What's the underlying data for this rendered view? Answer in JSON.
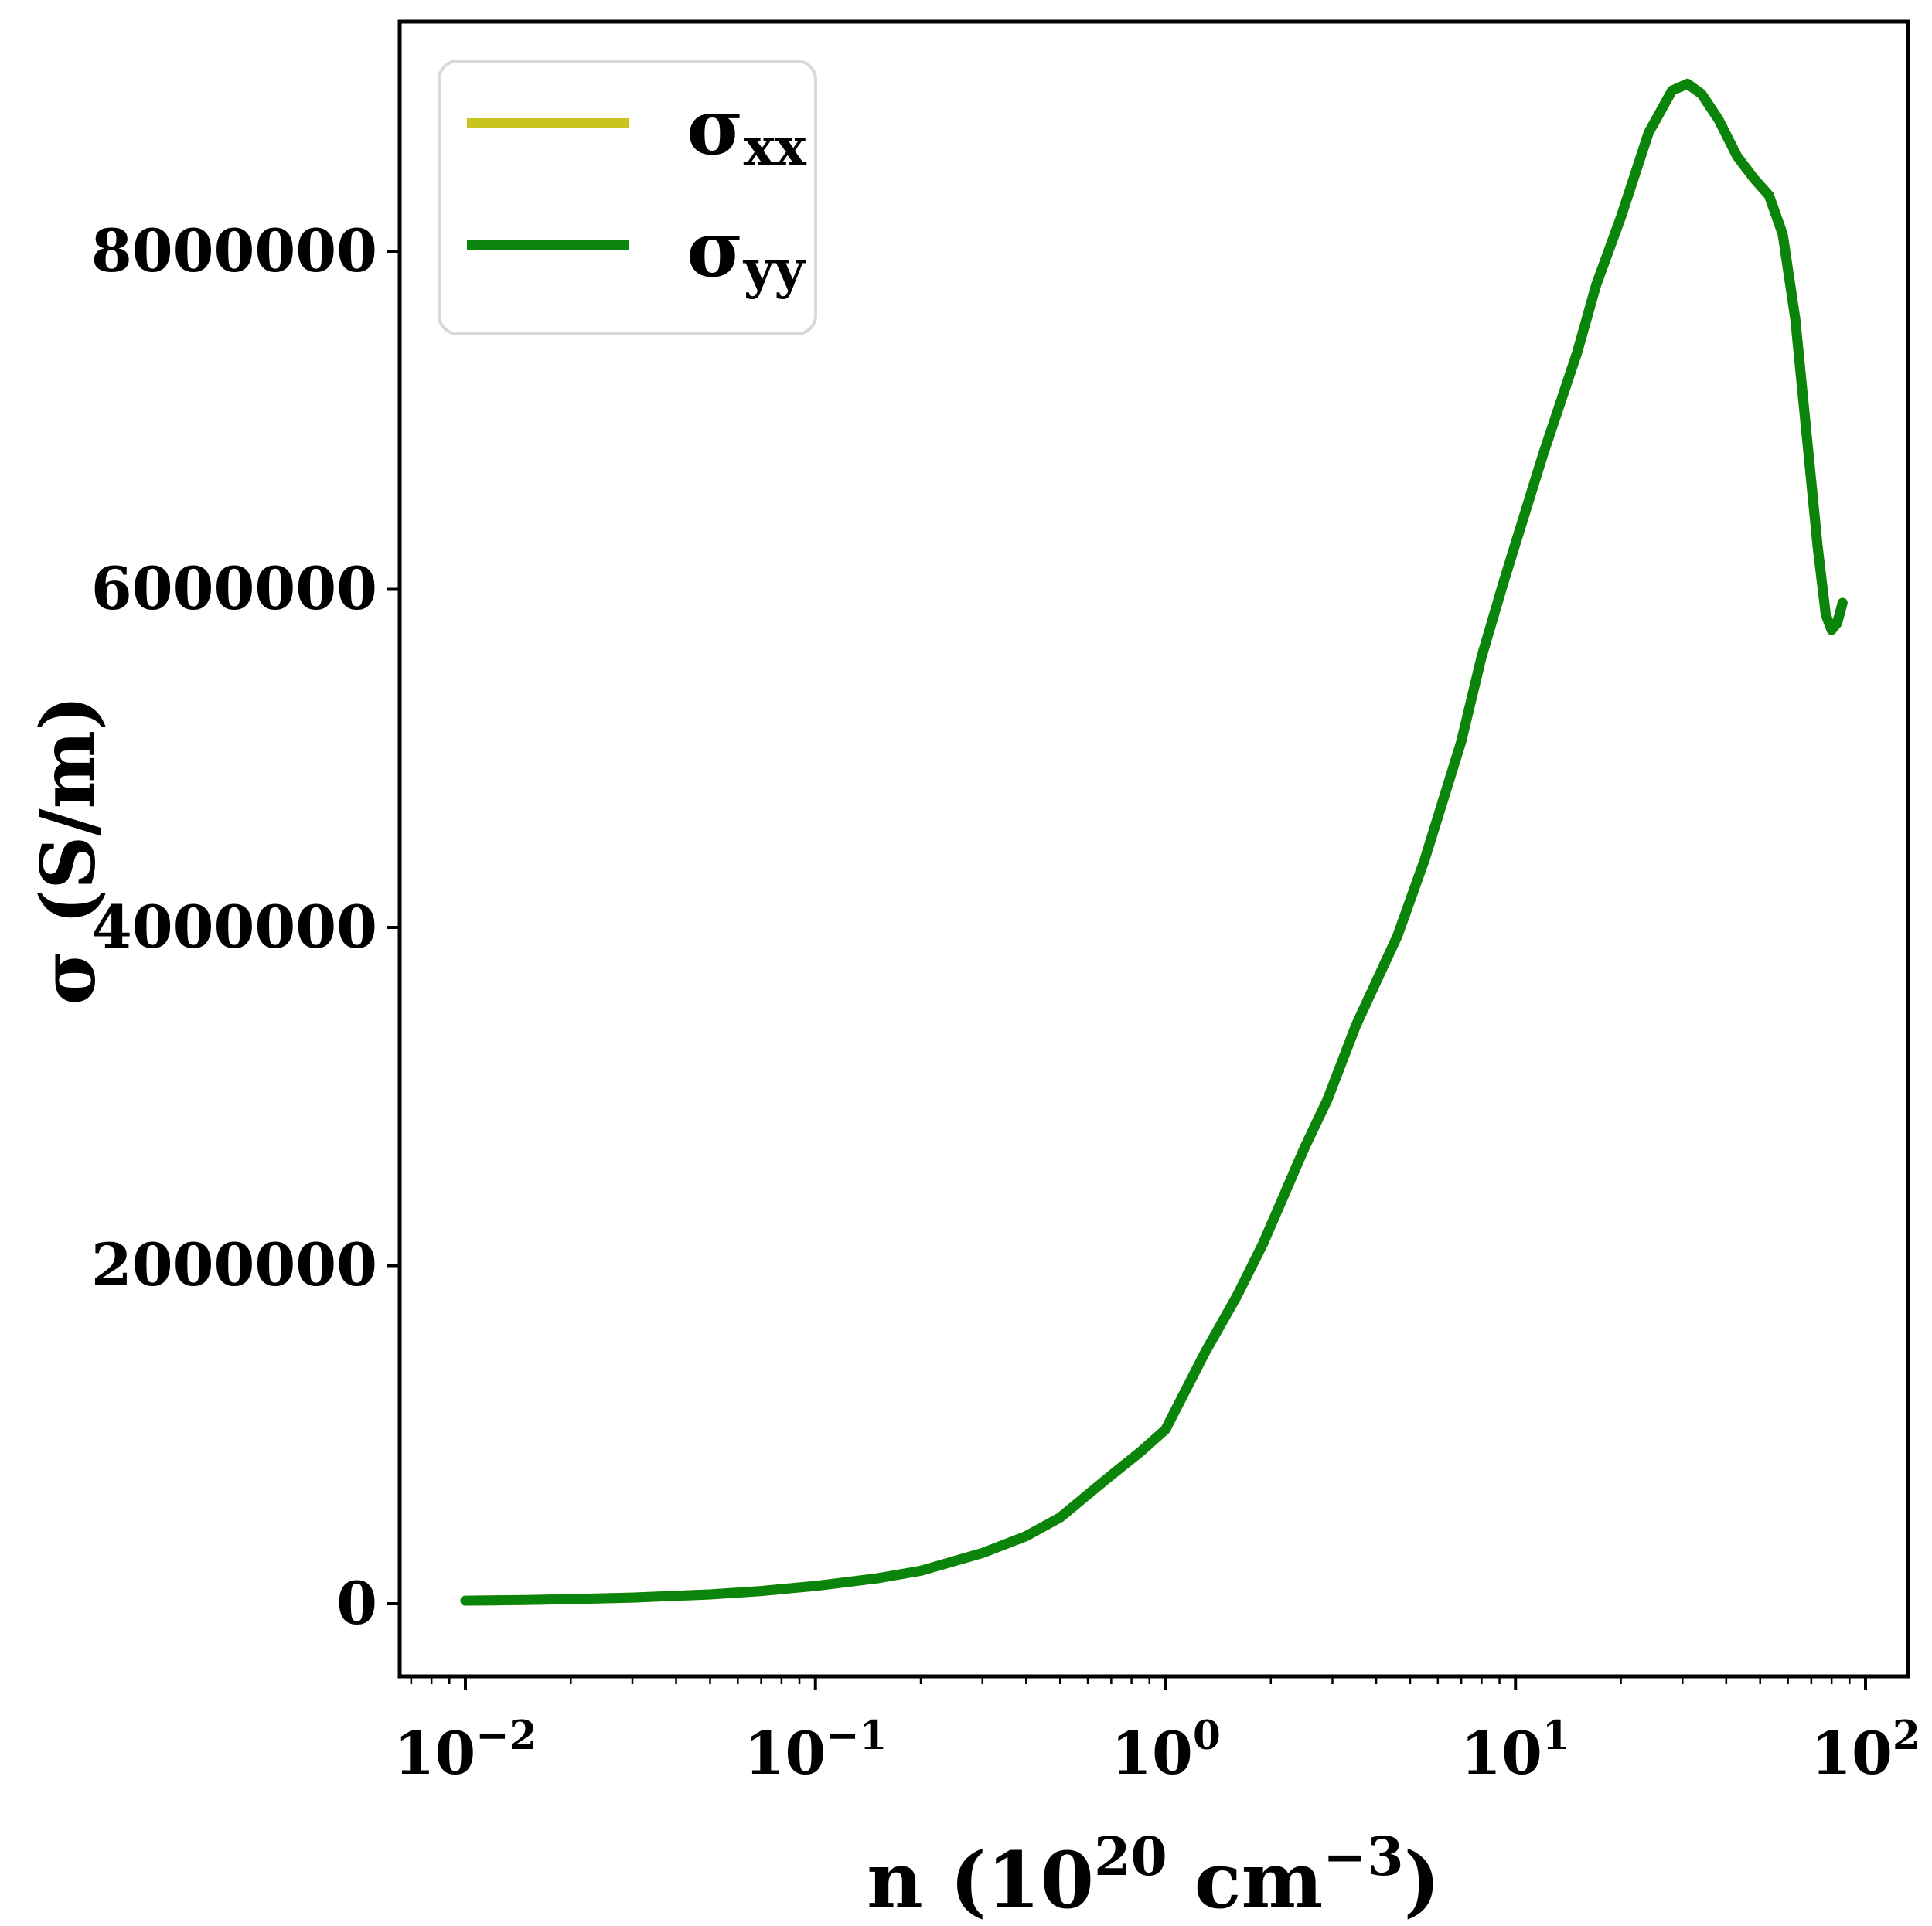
{
  "figure": {
    "ylabel": "σ (S/m)",
    "xlabel": {
      "pre": "n (10",
      "sup1": "20",
      "mid": " cm",
      "sup2": "−3",
      "post": ")"
    },
    "legend": {
      "entries": [
        {
          "label": "σ",
          "sub": "xx",
          "color": "#c9c51e"
        },
        {
          "label": "σ",
          "sub": "yy",
          "color": "#0a840a"
        }
      ]
    },
    "x_ticks": [
      {
        "base": "10",
        "exp": "−2",
        "value": 0.01
      },
      {
        "base": "10",
        "exp": "−1",
        "value": 0.1
      },
      {
        "base": "10",
        "exp": "0",
        "value": 1
      },
      {
        "base": "10",
        "exp": "1",
        "value": 10
      },
      {
        "base": "10",
        "exp": "2",
        "value": 100
      }
    ],
    "y_ticks": [
      {
        "label": "0",
        "value": 0
      },
      {
        "label": "2000000",
        "value": 2000000
      },
      {
        "label": "4000000",
        "value": 4000000
      },
      {
        "label": "6000000",
        "value": 6000000
      },
      {
        "label": "8000000",
        "value": 8000000
      }
    ]
  },
  "chart_data": {
    "type": "line",
    "xscale": "log",
    "title": "",
    "xlabel": "n (10^20 cm^-3)",
    "ylabel": "σ (S/m)",
    "xlim": [
      0.0065,
      132
    ],
    "ylim": [
      -430000,
      9360000
    ],
    "grid": false,
    "legend_position": "upper left",
    "x": [
      0.01,
      0.015,
      0.02,
      0.03,
      0.05,
      0.07,
      0.1,
      0.15,
      0.2,
      0.3,
      0.4,
      0.5,
      0.7,
      0.85,
      1.0,
      1.3,
      1.6,
      1.9,
      2.5,
      2.9,
      3.5,
      4.6,
      5.5,
      7,
      8,
      9.3,
      12,
      15,
      17,
      20,
      24,
      28,
      31,
      34,
      38,
      43,
      48,
      53,
      58,
      63,
      68,
      73,
      77,
      80,
      83,
      86
    ],
    "series": [
      {
        "name": "σ_xx",
        "color": "#c9c51e",
        "values": [
          18000,
          22000,
          27000,
          36000,
          55000,
          75000,
          105000,
          150000,
          195000,
          300000,
          400000,
          510000,
          760000,
          900000,
          1030000,
          1490000,
          1820000,
          2130000,
          2700000,
          2980000,
          3420000,
          3950000,
          4400000,
          5100000,
          5600000,
          6060000,
          6800000,
          7400000,
          7800000,
          8200000,
          8700000,
          8950000,
          8990000,
          8930000,
          8780000,
          8560000,
          8430000,
          8330000,
          8100000,
          7600000,
          6900000,
          6250000,
          5850000,
          5760000,
          5800000,
          5920000
        ]
      },
      {
        "name": "σ_yy",
        "color": "#0a840a",
        "values": [
          18000,
          22000,
          27000,
          36000,
          55000,
          75000,
          105000,
          150000,
          195000,
          300000,
          400000,
          510000,
          760000,
          900000,
          1030000,
          1490000,
          1820000,
          2130000,
          2700000,
          2980000,
          3420000,
          3950000,
          4400000,
          5100000,
          5600000,
          6060000,
          6800000,
          7400000,
          7800000,
          8200000,
          8700000,
          8950000,
          8990000,
          8930000,
          8780000,
          8560000,
          8430000,
          8330000,
          8100000,
          7600000,
          6900000,
          6250000,
          5850000,
          5760000,
          5800000,
          5920000
        ]
      }
    ]
  }
}
